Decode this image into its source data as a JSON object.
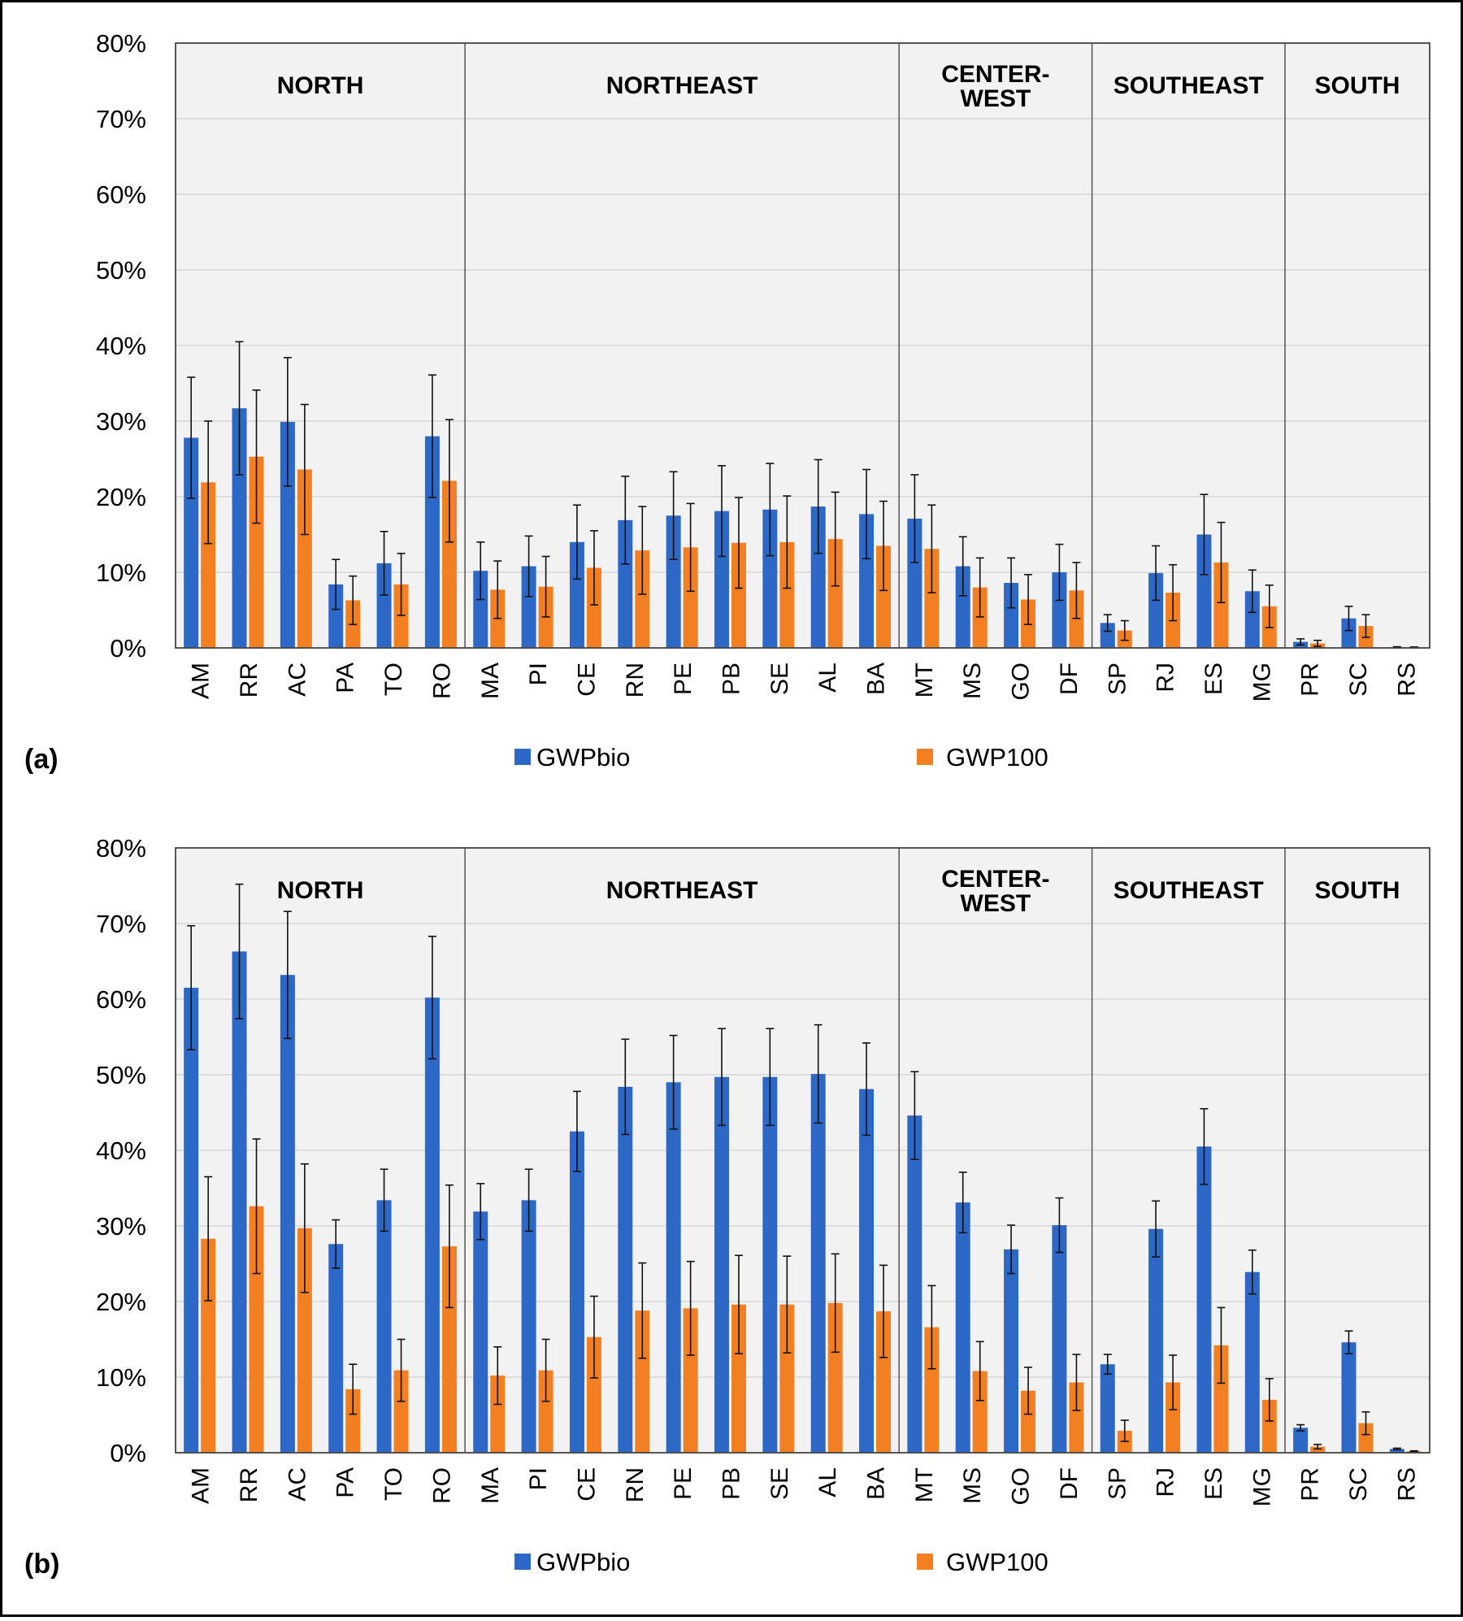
{
  "colors": {
    "gwpbio": "#2e68c6",
    "gwp100": "#f28023",
    "plot_bg": "#f2f2f2",
    "grid": "#d3d3d3",
    "axis": "#444444",
    "error_bar": "#111111"
  },
  "chart_data": [
    {
      "type": "bar",
      "panel_label": "(a)",
      "categories": [
        "AM",
        "RR",
        "AC",
        "PA",
        "TO",
        "RO",
        "MA",
        "PI",
        "CE",
        "RN",
        "PE",
        "PB",
        "SE",
        "AL",
        "BA",
        "MT",
        "MS",
        "GO",
        "DF",
        "SP",
        "RJ",
        "ES",
        "MG",
        "PR",
        "SC",
        "RS"
      ],
      "regions": [
        {
          "name": [
            "NORTH"
          ],
          "start": 0,
          "end": 5
        },
        {
          "name": [
            "NORTHEAST"
          ],
          "start": 6,
          "end": 14
        },
        {
          "name": [
            "CENTER-",
            "WEST"
          ],
          "start": 15,
          "end": 18
        },
        {
          "name": [
            "SOUTHEAST"
          ],
          "start": 19,
          "end": 22
        },
        {
          "name": [
            "SOUTH"
          ],
          "start": 23,
          "end": 25
        }
      ],
      "ylim": [
        0,
        80
      ],
      "yticks": [
        "0%",
        "10%",
        "20%",
        "30%",
        "40%",
        "50%",
        "60%",
        "70%",
        "80%"
      ],
      "grid": true,
      "legend_position": "bottom",
      "series": [
        {
          "name": "GWPbio",
          "values": [
            27.8,
            31.7,
            29.9,
            8.4,
            11.2,
            28.0,
            10.2,
            10.8,
            14.0,
            16.9,
            17.5,
            18.1,
            18.3,
            18.7,
            17.7,
            17.1,
            10.8,
            8.6,
            10.0,
            3.3,
            9.9,
            15.0,
            7.5,
            0.8,
            3.9,
            0.1
          ],
          "errors": [
            8.0,
            8.8,
            8.5,
            3.3,
            4.2,
            8.1,
            3.8,
            4.0,
            4.9,
            5.8,
            5.8,
            6.0,
            6.1,
            6.2,
            5.9,
            5.8,
            3.9,
            3.3,
            3.7,
            1.1,
            3.6,
            5.3,
            2.8,
            0.4,
            1.6,
            0.05
          ]
        },
        {
          "name": "GWP100",
          "values": [
            21.9,
            25.3,
            23.6,
            6.3,
            8.4,
            22.1,
            7.7,
            8.1,
            10.6,
            12.9,
            13.3,
            13.9,
            14.0,
            14.4,
            13.5,
            13.1,
            8.0,
            6.4,
            7.6,
            2.3,
            7.3,
            11.3,
            5.5,
            0.6,
            2.9,
            0.08
          ],
          "errors": [
            8.1,
            8.8,
            8.6,
            3.2,
            4.1,
            8.1,
            3.8,
            4.0,
            4.9,
            5.8,
            5.8,
            6.0,
            6.1,
            6.2,
            5.9,
            5.8,
            3.9,
            3.3,
            3.7,
            1.3,
            3.7,
            5.3,
            2.8,
            0.4,
            1.5,
            0.04
          ]
        }
      ]
    },
    {
      "type": "bar",
      "panel_label": "(b)",
      "categories": [
        "AM",
        "RR",
        "AC",
        "PA",
        "TO",
        "RO",
        "MA",
        "PI",
        "CE",
        "RN",
        "PE",
        "PB",
        "SE",
        "AL",
        "BA",
        "MT",
        "MS",
        "GO",
        "DF",
        "SP",
        "RJ",
        "ES",
        "MG",
        "PR",
        "SC",
        "RS"
      ],
      "regions": [
        {
          "name": [
            "NORTH"
          ],
          "start": 0,
          "end": 5
        },
        {
          "name": [
            "NORTHEAST"
          ],
          "start": 6,
          "end": 14
        },
        {
          "name": [
            "CENTER-",
            "WEST"
          ],
          "start": 15,
          "end": 18
        },
        {
          "name": [
            "SOUTHEAST"
          ],
          "start": 19,
          "end": 22
        },
        {
          "name": [
            "SOUTH"
          ],
          "start": 23,
          "end": 25
        }
      ],
      "ylim": [
        0,
        80
      ],
      "yticks": [
        "0%",
        "10%",
        "20%",
        "30%",
        "40%",
        "50%",
        "60%",
        "70%",
        "80%"
      ],
      "grid": true,
      "legend_position": "bottom",
      "series": [
        {
          "name": "GWPbio",
          "values": [
            61.5,
            66.3,
            63.2,
            27.6,
            33.4,
            60.2,
            31.9,
            33.4,
            42.5,
            48.4,
            49.0,
            49.7,
            49.7,
            50.1,
            48.1,
            44.6,
            33.1,
            26.9,
            30.1,
            11.7,
            29.6,
            40.5,
            23.9,
            3.3,
            14.6,
            0.5
          ],
          "errors": [
            8.2,
            8.9,
            8.4,
            3.2,
            4.1,
            8.1,
            3.7,
            4.1,
            5.3,
            6.3,
            6.2,
            6.4,
            6.4,
            6.5,
            6.1,
            5.8,
            4.0,
            3.2,
            3.6,
            1.3,
            3.7,
            5.0,
            2.9,
            0.4,
            1.5,
            0.1
          ]
        },
        {
          "name": "GWP100",
          "values": [
            28.3,
            32.6,
            29.7,
            8.4,
            10.9,
            27.3,
            10.2,
            10.9,
            15.3,
            18.8,
            19.1,
            19.6,
            19.6,
            19.8,
            18.7,
            16.6,
            10.8,
            8.2,
            9.3,
            2.9,
            9.3,
            14.2,
            7.0,
            0.8,
            3.9,
            0.2
          ],
          "errors": [
            8.2,
            8.9,
            8.5,
            3.3,
            4.1,
            8.1,
            3.8,
            4.1,
            5.4,
            6.3,
            6.2,
            6.5,
            6.4,
            6.5,
            6.1,
            5.5,
            3.9,
            3.1,
            3.7,
            1.4,
            3.6,
            5.0,
            2.8,
            0.3,
            1.5,
            0.05
          ]
        }
      ]
    }
  ]
}
